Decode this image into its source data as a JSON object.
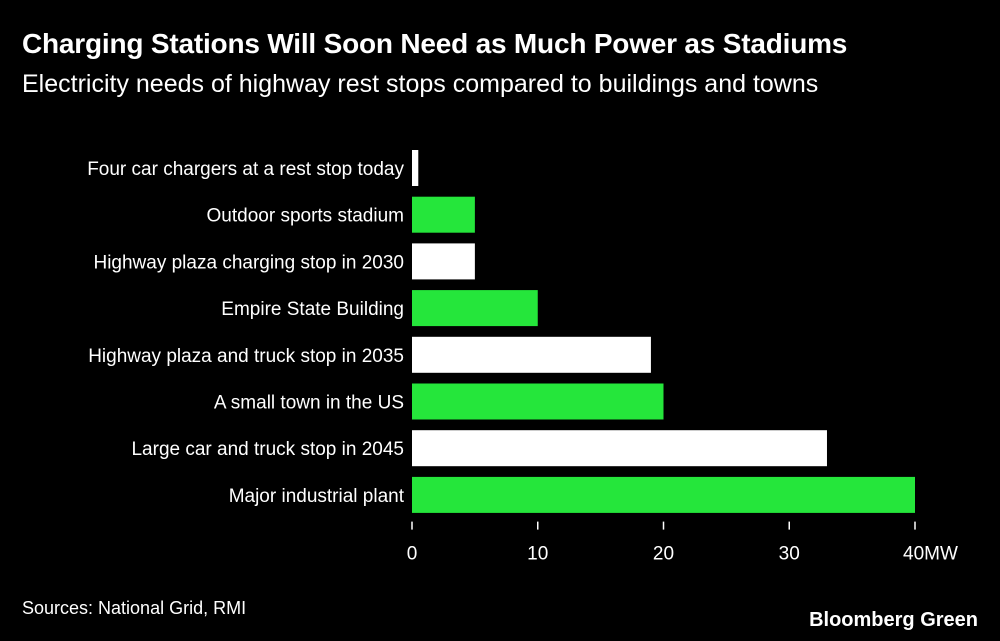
{
  "chart_data": {
    "type": "bar",
    "orientation": "horizontal",
    "title": "Charging Stations Will Soon Need as Much Power as Stadiums",
    "subtitle": "Electricity needs of highway rest stops compared to buildings and towns",
    "categories": [
      "Four car chargers at a rest stop today",
      "Outdoor sports stadium",
      "Highway plaza charging stop in 2030",
      "Empire State Building",
      "Highway plaza and truck stop in 2035",
      "A small town in the US",
      "Large car and truck stop in 2045",
      "Major industrial plant"
    ],
    "values": [
      0.5,
      5,
      5,
      10,
      19,
      20,
      33,
      40
    ],
    "bar_colors": [
      "#ffffff",
      "#25e63b",
      "#ffffff",
      "#25e63b",
      "#ffffff",
      "#25e63b",
      "#ffffff",
      "#25e63b"
    ],
    "xlim": [
      0,
      40
    ],
    "ticks": [
      0,
      10,
      20,
      30,
      40
    ],
    "tick_labels": [
      "0",
      "10",
      "20",
      "30",
      "40MW"
    ],
    "xlabel": "",
    "ylabel": "",
    "grid": false,
    "legend": "none"
  },
  "footer": {
    "source": "Sources: National Grid, RMI",
    "brand": "Bloomberg Green"
  }
}
